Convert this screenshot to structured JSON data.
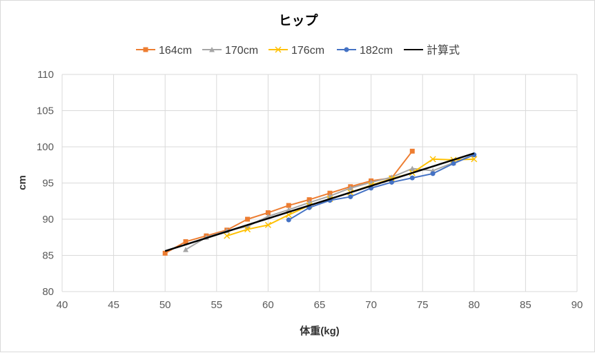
{
  "chart_data": {
    "type": "line",
    "title": "ヒップ",
    "xlabel": "体重(kg)",
    "ylabel": "cm",
    "xlim": [
      40,
      90
    ],
    "ylim": [
      80,
      110
    ],
    "xticks": [
      40,
      45,
      50,
      55,
      60,
      65,
      70,
      75,
      80,
      85,
      90
    ],
    "yticks": [
      80,
      85,
      90,
      95,
      100,
      105,
      110
    ],
    "grid": true,
    "legend_position": "top",
    "series": [
      {
        "name": "164cm",
        "color": "#ED7D31",
        "marker": "square",
        "x": [
          50,
          52,
          54,
          56,
          58,
          60,
          62,
          64,
          66,
          68,
          70,
          72,
          74
        ],
        "y": [
          85.3,
          86.9,
          87.7,
          88.5,
          90.0,
          90.9,
          91.9,
          92.7,
          93.6,
          94.5,
          95.3,
          95.7,
          99.4
        ]
      },
      {
        "name": "170cm",
        "color": "#A5A5A5",
        "marker": "triangle",
        "x": [
          52,
          54,
          56,
          58,
          60,
          62,
          64,
          66,
          68,
          70,
          72,
          74,
          76,
          78,
          80
        ],
        "y": [
          85.8,
          87.5,
          88.4,
          89.0,
          90.4,
          91.3,
          92.3,
          93.2,
          94.3,
          95.1,
          95.8,
          97.0,
          96.7,
          97.8,
          98.9
        ]
      },
      {
        "name": "176cm",
        "color": "#FFC000",
        "marker": "x",
        "x": [
          56,
          58,
          60,
          62,
          64,
          66,
          68,
          70,
          72,
          74,
          76,
          78,
          80
        ],
        "y": [
          87.7,
          88.6,
          89.2,
          90.6,
          91.9,
          92.8,
          93.7,
          94.7,
          95.6,
          96.4,
          98.3,
          98.2,
          98.3
        ]
      },
      {
        "name": "182cm",
        "color": "#4472C4",
        "marker": "circle",
        "x": [
          62,
          64,
          66,
          68,
          70,
          72,
          74,
          76,
          78,
          80
        ],
        "y": [
          89.9,
          91.6,
          92.6,
          93.1,
          94.3,
          95.1,
          95.7,
          96.3,
          97.7,
          98.9
        ]
      },
      {
        "name": "計算式",
        "color": "#000000",
        "marker": "none",
        "x": [
          50,
          80
        ],
        "y": [
          85.6,
          99.1
        ]
      }
    ]
  }
}
